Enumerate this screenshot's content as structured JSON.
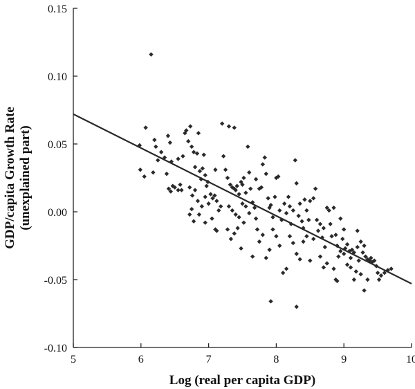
{
  "chart_data": {
    "type": "scatter",
    "xlabel": "Log (real per capita GDP)",
    "ylabel": "GDP/capita Growth Rate",
    "ylabel_sub": "(unexplained part)",
    "xlim": [
      5,
      10
    ],
    "ylim": [
      -0.1,
      0.15
    ],
    "x_ticks": [
      5,
      6,
      7,
      8,
      9,
      10
    ],
    "x_tick_labels": [
      "5",
      "6",
      "7",
      "8",
      "9",
      "10"
    ],
    "y_ticks": [
      0.15,
      0.1,
      0.05,
      0.0,
      -0.05,
      -0.1
    ],
    "y_tick_labels": [
      "0.15",
      "0.10",
      "0.05",
      "0.00",
      "-0.05",
      "-0.10"
    ],
    "grid": false,
    "fit_line": {
      "x": [
        5,
        10
      ],
      "y": [
        0.072,
        -0.053
      ]
    },
    "points": [
      {
        "x": 6.15,
        "y": 0.116
      },
      {
        "x": 5.98,
        "y": 0.049
      },
      {
        "x": 6.07,
        "y": 0.062
      },
      {
        "x": 6.2,
        "y": 0.053
      },
      {
        "x": 6.22,
        "y": 0.048
      },
      {
        "x": 6.25,
        "y": 0.038
      },
      {
        "x": 5.99,
        "y": 0.031
      },
      {
        "x": 6.05,
        "y": 0.026
      },
      {
        "x": 6.18,
        "y": 0.029
      },
      {
        "x": 6.3,
        "y": 0.044
      },
      {
        "x": 6.35,
        "y": 0.04
      },
      {
        "x": 6.4,
        "y": 0.056
      },
      {
        "x": 6.43,
        "y": 0.051
      },
      {
        "x": 6.45,
        "y": 0.037
      },
      {
        "x": 6.38,
        "y": 0.028
      },
      {
        "x": 6.41,
        "y": 0.017
      },
      {
        "x": 6.47,
        "y": 0.019
      },
      {
        "x": 6.44,
        "y": 0.015
      },
      {
        "x": 6.5,
        "y": 0.018
      },
      {
        "x": 6.55,
        "y": 0.016
      },
      {
        "x": 6.6,
        "y": 0.016
      },
      {
        "x": 6.62,
        "y": 0.041
      },
      {
        "x": 6.65,
        "y": 0.058
      },
      {
        "x": 6.67,
        "y": 0.06
      },
      {
        "x": 6.7,
        "y": 0.052
      },
      {
        "x": 6.73,
        "y": 0.063
      },
      {
        "x": 6.75,
        "y": 0.048
      },
      {
        "x": 6.78,
        "y": 0.044
      },
      {
        "x": 6.8,
        "y": 0.033
      },
      {
        "x": 6.83,
        "y": 0.043
      },
      {
        "x": 6.85,
        "y": 0.058
      },
      {
        "x": 6.87,
        "y": 0.03
      },
      {
        "x": 6.89,
        "y": 0.024
      },
      {
        "x": 6.91,
        "y": 0.032
      },
      {
        "x": 6.93,
        "y": 0.042
      },
      {
        "x": 6.95,
        "y": 0.027
      },
      {
        "x": 6.97,
        "y": 0.019
      },
      {
        "x": 6.99,
        "y": 0.022
      },
      {
        "x": 6.72,
        "y": 0.018
      },
      {
        "x": 6.76,
        "y": 0.012
      },
      {
        "x": 6.8,
        "y": 0.016
      },
      {
        "x": 6.84,
        "y": 0.008
      },
      {
        "x": 6.75,
        "y": 0.002
      },
      {
        "x": 6.72,
        "y": -0.002
      },
      {
        "x": 6.78,
        "y": -0.007
      },
      {
        "x": 6.86,
        "y": -0.002
      },
      {
        "x": 6.9,
        "y": 0.004
      },
      {
        "x": 6.95,
        "y": 0.011
      },
      {
        "x": 7.0,
        "y": 0.006
      },
      {
        "x": 7.03,
        "y": 0.013
      },
      {
        "x": 7.06,
        "y": 0.01
      },
      {
        "x": 7.09,
        "y": 0.012
      },
      {
        "x": 7.12,
        "y": 0.008
      },
      {
        "x": 7.15,
        "y": 0.001
      },
      {
        "x": 7.18,
        "y": 0.004
      },
      {
        "x": 7.05,
        "y": -0.005
      },
      {
        "x": 7.1,
        "y": -0.013
      },
      {
        "x": 7.12,
        "y": -0.014
      },
      {
        "x": 7.2,
        "y": 0.065
      },
      {
        "x": 7.3,
        "y": 0.063
      },
      {
        "x": 7.38,
        "y": 0.062
      },
      {
        "x": 7.22,
        "y": 0.041
      },
      {
        "x": 7.25,
        "y": 0.031
      },
      {
        "x": 7.28,
        "y": 0.025
      },
      {
        "x": 7.32,
        "y": 0.02
      },
      {
        "x": 7.35,
        "y": 0.018
      },
      {
        "x": 7.38,
        "y": 0.017
      },
      {
        "x": 7.4,
        "y": 0.016
      },
      {
        "x": 7.42,
        "y": 0.019
      },
      {
        "x": 7.45,
        "y": 0.013
      },
      {
        "x": 7.48,
        "y": 0.022
      },
      {
        "x": 7.5,
        "y": 0.02
      },
      {
        "x": 7.52,
        "y": 0.025
      },
      {
        "x": 7.55,
        "y": 0.014
      },
      {
        "x": 7.58,
        "y": 0.048
      },
      {
        "x": 7.6,
        "y": 0.029
      },
      {
        "x": 7.62,
        "y": 0.017
      },
      {
        "x": 7.3,
        "y": 0.004
      },
      {
        "x": 7.35,
        "y": 0.001
      },
      {
        "x": 7.4,
        "y": -0.002
      },
      {
        "x": 7.45,
        "y": -0.004
      },
      {
        "x": 7.5,
        "y": 0.006
      },
      {
        "x": 7.55,
        "y": 0.004
      },
      {
        "x": 7.6,
        "y": -0.001
      },
      {
        "x": 7.28,
        "y": -0.013
      },
      {
        "x": 7.33,
        "y": -0.02
      },
      {
        "x": 7.38,
        "y": -0.016
      },
      {
        "x": 7.43,
        "y": -0.012
      },
      {
        "x": 7.48,
        "y": -0.027
      },
      {
        "x": 7.52,
        "y": -0.008
      },
      {
        "x": 7.65,
        "y": 0.007
      },
      {
        "x": 7.68,
        "y": 0.003
      },
      {
        "x": 7.7,
        "y": -0.005
      },
      {
        "x": 7.72,
        "y": -0.013
      },
      {
        "x": 7.75,
        "y": 0.017
      },
      {
        "x": 7.78,
        "y": 0.018
      },
      {
        "x": 7.8,
        "y": 0.035
      },
      {
        "x": 7.83,
        "y": 0.04
      },
      {
        "x": 7.85,
        "y": 0.028
      },
      {
        "x": 7.88,
        "y": 0.01
      },
      {
        "x": 7.9,
        "y": 0.003
      },
      {
        "x": 7.92,
        "y": 0.005
      },
      {
        "x": 7.95,
        "y": -0.004
      },
      {
        "x": 7.98,
        "y": 0.011
      },
      {
        "x": 8.0,
        "y": 0.025
      },
      {
        "x": 8.03,
        "y": 0.026
      },
      {
        "x": 8.05,
        "y": 0.001
      },
      {
        "x": 8.08,
        "y": -0.006
      },
      {
        "x": 7.75,
        "y": -0.022
      },
      {
        "x": 7.8,
        "y": -0.017
      },
      {
        "x": 7.85,
        "y": -0.034
      },
      {
        "x": 7.9,
        "y": -0.028
      },
      {
        "x": 7.95,
        "y": -0.013
      },
      {
        "x": 8.0,
        "y": -0.018
      },
      {
        "x": 8.05,
        "y": -0.025
      },
      {
        "x": 7.92,
        "y": -0.066
      },
      {
        "x": 8.3,
        "y": -0.07
      },
      {
        "x": 8.1,
        "y": -0.045
      },
      {
        "x": 8.15,
        "y": -0.042
      },
      {
        "x": 8.12,
        "y": 0.006
      },
      {
        "x": 8.15,
        "y": -0.001
      },
      {
        "x": 8.18,
        "y": 0.011
      },
      {
        "x": 8.2,
        "y": 0.004
      },
      {
        "x": 8.22,
        "y": -0.009
      },
      {
        "x": 8.25,
        "y": 0.001
      },
      {
        "x": 8.28,
        "y": 0.038
      },
      {
        "x": 8.3,
        "y": 0.021
      },
      {
        "x": 8.33,
        "y": -0.003
      },
      {
        "x": 8.35,
        "y": 0.006
      },
      {
        "x": 8.38,
        "y": -0.007
      },
      {
        "x": 8.4,
        "y": -0.012
      },
      {
        "x": 8.42,
        "y": 0.009
      },
      {
        "x": 8.45,
        "y": 0.001
      },
      {
        "x": 8.48,
        "y": -0.006
      },
      {
        "x": 8.2,
        "y": -0.018
      },
      {
        "x": 8.25,
        "y": -0.023
      },
      {
        "x": 8.3,
        "y": -0.031
      },
      {
        "x": 8.35,
        "y": -0.035
      },
      {
        "x": 8.4,
        "y": -0.022
      },
      {
        "x": 8.45,
        "y": -0.018
      },
      {
        "x": 8.5,
        "y": -0.036
      },
      {
        "x": 8.55,
        "y": -0.02
      },
      {
        "x": 8.58,
        "y": 0.017
      },
      {
        "x": 8.6,
        "y": -0.006
      },
      {
        "x": 8.62,
        "y": -0.014
      },
      {
        "x": 8.65,
        "y": -0.009
      },
      {
        "x": 8.68,
        "y": -0.019
      },
      {
        "x": 8.7,
        "y": -0.012
      },
      {
        "x": 8.72,
        "y": -0.026
      },
      {
        "x": 8.75,
        "y": 0.003
      },
      {
        "x": 8.78,
        "y": 0.001
      },
      {
        "x": 8.8,
        "y": -0.009
      },
      {
        "x": 8.82,
        "y": -0.018
      },
      {
        "x": 8.85,
        "y": 0.003
      },
      {
        "x": 8.88,
        "y": -0.017
      },
      {
        "x": 8.9,
        "y": -0.025
      },
      {
        "x": 8.92,
        "y": -0.033
      },
      {
        "x": 8.95,
        "y": -0.029
      },
      {
        "x": 8.65,
        "y": -0.033
      },
      {
        "x": 8.7,
        "y": -0.041
      },
      {
        "x": 8.75,
        "y": -0.038
      },
      {
        "x": 8.85,
        "y": -0.042
      },
      {
        "x": 8.88,
        "y": -0.05
      },
      {
        "x": 8.9,
        "y": -0.051
      },
      {
        "x": 8.98,
        "y": -0.02
      },
      {
        "x": 9.0,
        "y": -0.031
      },
      {
        "x": 9.02,
        "y": -0.027
      },
      {
        "x": 9.05,
        "y": -0.024
      },
      {
        "x": 9.08,
        "y": -0.029
      },
      {
        "x": 9.1,
        "y": -0.034
      },
      {
        "x": 9.12,
        "y": -0.028
      },
      {
        "x": 9.15,
        "y": -0.03
      },
      {
        "x": 9.18,
        "y": -0.044
      },
      {
        "x": 9.2,
        "y": -0.026
      },
      {
        "x": 9.22,
        "y": -0.036
      },
      {
        "x": 9.25,
        "y": -0.022
      },
      {
        "x": 9.28,
        "y": -0.03
      },
      {
        "x": 9.3,
        "y": -0.025
      },
      {
        "x": 9.32,
        "y": -0.033
      },
      {
        "x": 9.35,
        "y": -0.035
      },
      {
        "x": 9.38,
        "y": -0.036
      },
      {
        "x": 9.4,
        "y": -0.034
      },
      {
        "x": 9.42,
        "y": -0.037
      },
      {
        "x": 9.45,
        "y": -0.036
      },
      {
        "x": 9.48,
        "y": -0.04
      },
      {
        "x": 9.5,
        "y": -0.045
      },
      {
        "x": 9.52,
        "y": -0.05
      },
      {
        "x": 9.55,
        "y": -0.047
      },
      {
        "x": 9.6,
        "y": -0.045
      },
      {
        "x": 9.65,
        "y": -0.043
      },
      {
        "x": 9.7,
        "y": -0.042
      },
      {
        "x": 9.35,
        "y": -0.05
      },
      {
        "x": 9.3,
        "y": -0.058
      },
      {
        "x": 9.25,
        "y": -0.046
      },
      {
        "x": 9.15,
        "y": -0.05
      },
      {
        "x": 9.1,
        "y": -0.041
      },
      {
        "x": 9.05,
        "y": -0.039
      },
      {
        "x": 9.2,
        "y": -0.014
      },
      {
        "x": 9.0,
        "y": -0.013
      },
      {
        "x": 8.95,
        "y": -0.005
      },
      {
        "x": 8.5,
        "y": 0.008
      },
      {
        "x": 8.55,
        "y": 0.01
      },
      {
        "x": 7.7,
        "y": 0.024
      },
      {
        "x": 7.65,
        "y": -0.033
      },
      {
        "x": 7.1,
        "y": 0.031
      },
      {
        "x": 6.55,
        "y": 0.039
      },
      {
        "x": 6.58,
        "y": 0.02
      },
      {
        "x": 6.95,
        "y": -0.008
      }
    ]
  }
}
